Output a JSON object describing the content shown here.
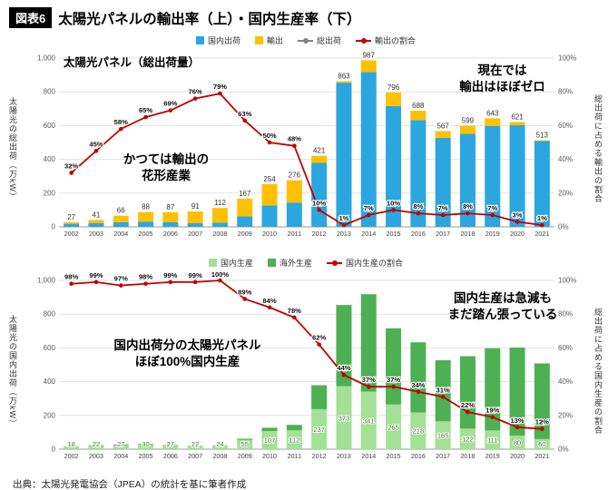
{
  "header": {
    "badge": "図表6",
    "title": "太陽光パネルの輸出率（上）・国内生産率（下）"
  },
  "source": "出典：太陽光発電協会（JPEA）の統計を基に筆者作成",
  "chart_data": [
    {
      "type": "bar",
      "stacked": true,
      "title_annotation": "太陽光パネル（総出荷量）",
      "annotations": [
        "かつては輸出の\n花形産業",
        "現在では\n輸出はほぼゼロ"
      ],
      "categories": [
        "2002",
        "2003",
        "2004",
        "2005",
        "2006",
        "2007",
        "2008",
        "2009",
        "2010",
        "2011",
        "2012",
        "2013",
        "2014",
        "2015",
        "2016",
        "2017",
        "2018",
        "2019",
        "2020",
        "2021"
      ],
      "series": [
        {
          "name": "国内出荷",
          "color": "#2BA6DF",
          "values": [
            18,
            23,
            28,
            31,
            27,
            22,
            24,
            62,
            127,
            144,
            379,
            854,
            918,
            716,
            633,
            527,
            551,
            598,
            602,
            508
          ]
        },
        {
          "name": "輸出",
          "color": "#FFC000",
          "values": [
            9,
            18,
            38,
            57,
            60,
            69,
            88,
            105,
            127,
            132,
            42,
            9,
            69,
            80,
            55,
            40,
            48,
            45,
            19,
            5
          ]
        }
      ],
      "totals": [
        27,
        41,
        66,
        88,
        87,
        91,
        112,
        167,
        254,
        276,
        421,
        863,
        987,
        796,
        688,
        567,
        599,
        643,
        621,
        513
      ],
      "extra_legend": {
        "name": "総出荷",
        "color": "#808080"
      },
      "line": {
        "name": "輸出の割合",
        "color": "#C00000",
        "values": [
          32,
          45,
          58,
          65,
          69,
          76,
          79,
          63,
          50,
          48,
          10,
          1,
          7,
          10,
          8,
          7,
          8,
          7,
          3,
          1
        ]
      },
      "bar_labels": "total",
      "ylabel_left": "太陽光の総出荷（万kW）",
      "ylabel_right": "総出荷に占める輸出の割合",
      "left_ticks": [
        "0",
        "200",
        "400",
        "600",
        "800",
        "1,000"
      ],
      "right_ticks": [
        "0%",
        "20%",
        "40%",
        "60%",
        "80%",
        "100%"
      ],
      "ylim_left": [
        0,
        1000
      ],
      "ylim_right": [
        0,
        100
      ]
    },
    {
      "type": "bar",
      "stacked": true,
      "title_annotation": "",
      "annotations": [
        "国内出荷分の太陽光パネル\nほぼ100%国内生産",
        "国内生産は急減も\nまだ踏ん張っている"
      ],
      "categories": [
        "2002",
        "2003",
        "2004",
        "2005",
        "2006",
        "2007",
        "2008",
        "2009",
        "2010",
        "2011",
        "2012",
        "2013",
        "2014",
        "2015",
        "2016",
        "2017",
        "2018",
        "2019",
        "2020",
        "2021"
      ],
      "series": [
        {
          "name": "国内生産",
          "color": "#A4E096",
          "values": [
            18,
            22,
            27,
            30,
            27,
            22,
            24,
            55,
            107,
            112,
            237,
            373,
            341,
            265,
            218,
            165,
            122,
            111,
            80,
            60
          ]
        },
        {
          "name": "海外生産",
          "color": "#4DB052",
          "values": [
            0,
            1,
            1,
            1,
            0,
            0,
            0,
            7,
            20,
            32,
            142,
            481,
            577,
            451,
            415,
            362,
            429,
            487,
            522,
            448
          ]
        }
      ],
      "totals": [
        18,
        23,
        28,
        31,
        27,
        22,
        24,
        62,
        127,
        144,
        379,
        854,
        918,
        716,
        633,
        527,
        551,
        598,
        602,
        508
      ],
      "line": {
        "name": "国内生産の割合",
        "color": "#C00000",
        "values": [
          98,
          99,
          97,
          98,
          99,
          99,
          100,
          89,
          84,
          78,
          62,
          44,
          37,
          37,
          34,
          31,
          22,
          19,
          13,
          12
        ]
      },
      "bar_labels": "first",
      "bar_label_color": "#3E7B34",
      "ylabel_left": "太陽光の国内出荷（万kW）",
      "ylabel_right": "総出荷に占める国内生産の割合",
      "left_ticks": [
        "0",
        "200",
        "400",
        "600",
        "800",
        "1,000"
      ],
      "right_ticks": [
        "0%",
        "20%",
        "40%",
        "60%",
        "80%",
        "100%"
      ],
      "ylim_left": [
        0,
        1000
      ],
      "ylim_right": [
        0,
        100
      ]
    }
  ]
}
